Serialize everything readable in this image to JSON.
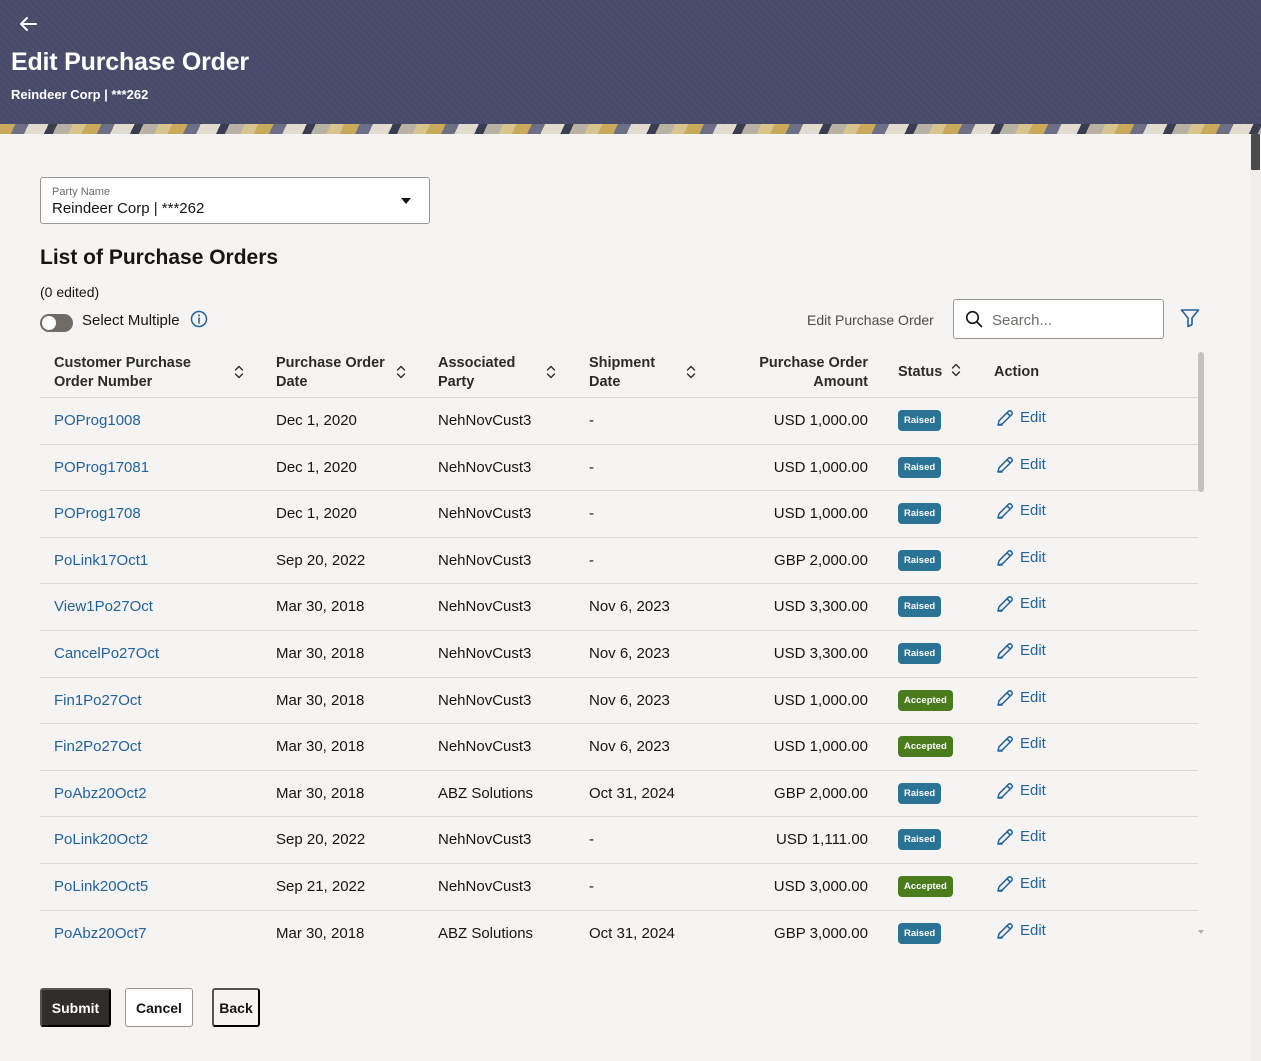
{
  "header": {
    "title": "Edit Purchase Order",
    "subtitle": "Reindeer Corp | ***262"
  },
  "party": {
    "label": "Party Name",
    "value": "Reindeer Corp | ***262"
  },
  "list": {
    "title": "List of Purchase Orders",
    "edited_count": "(0 edited)",
    "select_multiple_label": "Select Multiple",
    "select_multiple_on": false,
    "edit_po_label": "Edit Purchase Order",
    "search_placeholder": "Search..."
  },
  "table": {
    "columns": {
      "po_number": "Customer Purchase Order Number",
      "po_date": "Purchase Order Date",
      "party": "Associated Party",
      "ship_date": "Shipment Date",
      "amount": "Purchase Order Amount",
      "status": "Status",
      "action": "Action"
    },
    "rows": [
      {
        "po_number": "POProg1008",
        "po_date": "Dec 1, 2020",
        "party": "NehNovCust3",
        "ship_date": "-",
        "amount": "USD 1,000.00",
        "status": "Raised",
        "action": "Edit"
      },
      {
        "po_number": "POProg17081",
        "po_date": "Dec 1, 2020",
        "party": "NehNovCust3",
        "ship_date": "-",
        "amount": "USD 1,000.00",
        "status": "Raised",
        "action": "Edit"
      },
      {
        "po_number": "POProg1708",
        "po_date": "Dec 1, 2020",
        "party": "NehNovCust3",
        "ship_date": "-",
        "amount": "USD 1,000.00",
        "status": "Raised",
        "action": "Edit"
      },
      {
        "po_number": "PoLink17Oct1",
        "po_date": "Sep 20, 2022",
        "party": "NehNovCust3",
        "ship_date": "-",
        "amount": "GBP 2,000.00",
        "status": "Raised",
        "action": "Edit"
      },
      {
        "po_number": "View1Po27Oct",
        "po_date": "Mar 30, 2018",
        "party": "NehNovCust3",
        "ship_date": "Nov 6, 2023",
        "amount": "USD 3,300.00",
        "status": "Raised",
        "action": "Edit"
      },
      {
        "po_number": "CancelPo27Oct",
        "po_date": "Mar 30, 2018",
        "party": "NehNovCust3",
        "ship_date": "Nov 6, 2023",
        "amount": "USD 3,300.00",
        "status": "Raised",
        "action": "Edit"
      },
      {
        "po_number": "Fin1Po27Oct",
        "po_date": "Mar 30, 2018",
        "party": "NehNovCust3",
        "ship_date": "Nov 6, 2023",
        "amount": "USD 1,000.00",
        "status": "Accepted",
        "action": "Edit"
      },
      {
        "po_number": "Fin2Po27Oct",
        "po_date": "Mar 30, 2018",
        "party": "NehNovCust3",
        "ship_date": "Nov 6, 2023",
        "amount": "USD 1,000.00",
        "status": "Accepted",
        "action": "Edit"
      },
      {
        "po_number": "PoAbz20Oct2",
        "po_date": "Mar 30, 2018",
        "party": "ABZ Solutions",
        "ship_date": "Oct 31, 2024",
        "amount": "GBP 2,000.00",
        "status": "Raised",
        "action": "Edit"
      },
      {
        "po_number": "PoLink20Oct2",
        "po_date": "Sep 20, 2022",
        "party": "NehNovCust3",
        "ship_date": "-",
        "amount": "USD 1,111.00",
        "status": "Raised",
        "action": "Edit"
      },
      {
        "po_number": "PoLink20Oct5",
        "po_date": "Sep 21, 2022",
        "party": "NehNovCust3",
        "ship_date": "-",
        "amount": "USD 3,000.00",
        "status": "Accepted",
        "action": "Edit"
      },
      {
        "po_number": "PoAbz20Oct7",
        "po_date": "Mar 30, 2018",
        "party": "ABZ Solutions",
        "ship_date": "Oct 31, 2024",
        "amount": "GBP 3,000.00",
        "status": "Raised",
        "action": "Edit"
      }
    ]
  },
  "buttons": {
    "submit": "Submit",
    "cancel": "Cancel",
    "back": "Back"
  },
  "colors": {
    "header_bg": "#474a69",
    "link": "#22629e",
    "raised": "#2a7395",
    "accepted": "#4a7c1d",
    "primary_button": "#312d2a"
  },
  "icons": {
    "back": "arrow-left-icon",
    "dropdown": "caret-down-icon",
    "info": "info-icon",
    "search": "search-icon",
    "filter": "filter-icon",
    "sort": "sort-icon",
    "edit": "pencil-icon"
  }
}
